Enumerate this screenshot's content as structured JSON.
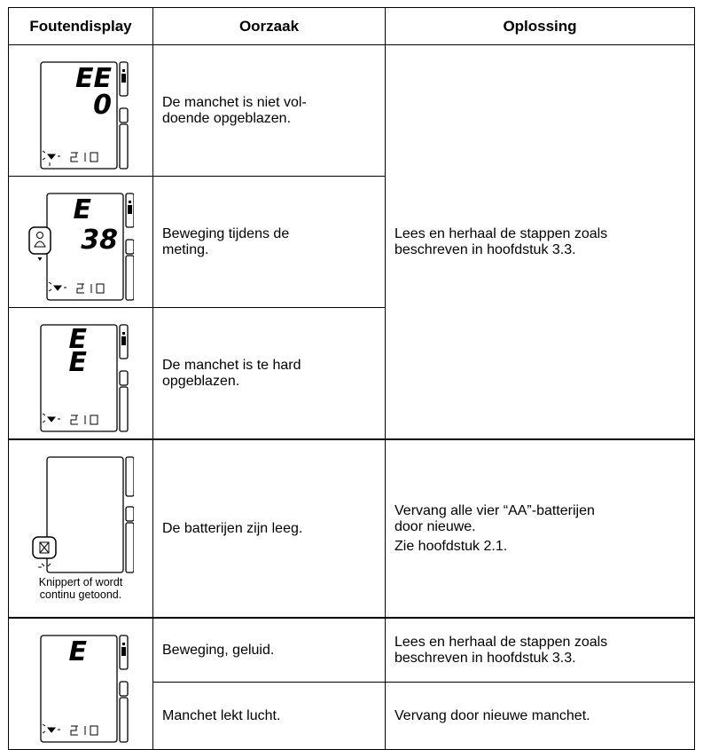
{
  "table": {
    "header": [
      "Foutendisplay",
      "Oorzaak",
      "Oplossing"
    ],
    "rows": [
      {
        "display": [
          "EE",
          "0"
        ],
        "cause": "De manchet is niet vol-\ndoende opgeblazen.",
        "solution": "Lees en herhaal de stappen zoals\nbeschreven in hoofdstuk 3.3."
      },
      {
        "display": [
          "E",
          "38"
        ],
        "cause": "Beweging tijdens de\nmeting."
      },
      {
        "display": [
          "E",
          "E"
        ],
        "cause": "De manchet is te hard\nopgeblazen."
      },
      {
        "display_caption": "Knippert of wordt\ncontinu getoond.",
        "cause": "De batterijen zijn leeg.",
        "solution": [
          "Vervang alle vier “AA”-batterijen\ndoor nieuwe.",
          "Zie hoofdstuk 2.1."
        ]
      },
      {
        "display": [
          "E"
        ],
        "cause": "Beweging, geluid.",
        "solution": "Lees en herhaal de stappen zoals\nbeschreven in hoofdstuk 3.3."
      },
      {
        "cause": "Manchet lekt lucht.",
        "solution": "Vervang door nieuwe manchet."
      }
    ]
  }
}
